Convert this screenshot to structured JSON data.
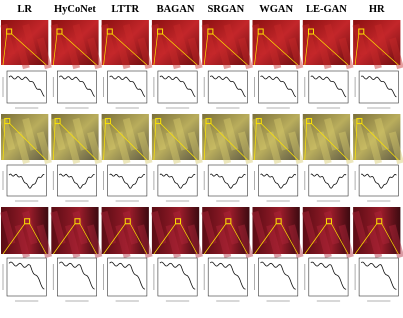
{
  "columns": [
    "LR",
    "HyCoNet",
    "LTTR",
    "BAGAN",
    "SRGAN",
    "WGAN",
    "LE-GAN",
    "HR"
  ]
}
